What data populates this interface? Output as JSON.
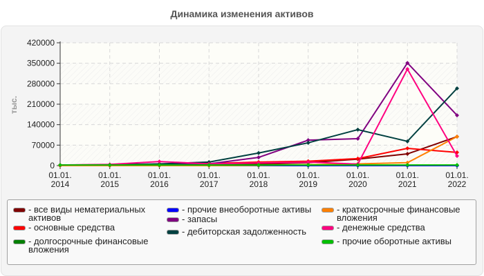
{
  "title": "Динамика изменения активов",
  "chart_data": {
    "type": "line",
    "title": "Динамика изменения активов",
    "xlabel": "",
    "ylabel": "тыс.",
    "ylim": [
      0,
      420000
    ],
    "yticks": [
      "0",
      "70000",
      "140000",
      "210000",
      "280000",
      "350000",
      "420000"
    ],
    "categories": [
      "01.01.\n2014",
      "01.01.\n2015",
      "01.01.\n2016",
      "01.01.\n2017",
      "01.01.\n2018",
      "01.01.\n2019",
      "01.01.\n2020",
      "01.01.\n2021",
      "01.01.\n2022"
    ],
    "grid": true,
    "legend_position": "bottom",
    "series": [
      {
        "name": "все виды нематериальных активов",
        "color": "#800000",
        "values": [
          0,
          0,
          1000,
          2000,
          5000,
          10000,
          22000,
          40000,
          99000
        ]
      },
      {
        "name": "основные средства",
        "color": "#ff0000",
        "values": [
          2000,
          3000,
          5000,
          7000,
          12000,
          15000,
          24000,
          59000,
          45000
        ]
      },
      {
        "name": "долгосрочные финансовые вложения",
        "color": "#008000",
        "values": [
          0,
          0,
          0,
          0,
          0,
          0,
          0,
          0,
          0
        ]
      },
      {
        "name": "прочие внеоборотные активы",
        "color": "#0000ff",
        "values": [
          0,
          0,
          0,
          0,
          0,
          0,
          0,
          0,
          0
        ]
      },
      {
        "name": "запасы",
        "color": "#800080",
        "values": [
          1000,
          2000,
          4000,
          6000,
          28000,
          87000,
          92000,
          351000,
          172000
        ]
      },
      {
        "name": "дебиторская задолженность",
        "color": "#004040",
        "values": [
          1000,
          3000,
          6000,
          12000,
          43000,
          78000,
          123000,
          83000,
          264000
        ]
      },
      {
        "name": "краткосрочные финансовые вложения",
        "color": "#ff8000",
        "values": [
          0,
          0,
          0,
          0,
          1000,
          3000,
          6000,
          10000,
          99000
        ]
      },
      {
        "name": "денежные средства",
        "color": "#ff0080",
        "values": [
          2000,
          4000,
          14000,
          6000,
          9000,
          12000,
          5000,
          330000,
          33000
        ]
      },
      {
        "name": "прочие оборотные активы",
        "color": "#00c000",
        "values": [
          2000,
          2000,
          2000,
          2000,
          2000,
          2000,
          2000,
          2000,
          2000
        ]
      }
    ]
  },
  "legend": [
    {
      "label": "- все виды нематериальных\nактивов",
      "color": "#800000"
    },
    {
      "label": "- основные средства",
      "color": "#ff0000"
    },
    {
      "label": "- долгосрочные финансовые\nвложения",
      "color": "#008000"
    },
    {
      "label": "- прочие внеоборотные активы",
      "color": "#0000ff"
    },
    {
      "label": "- запасы",
      "color": "#800080"
    },
    {
      "label": "- дебиторская задолженность",
      "color": "#004040"
    },
    {
      "label": "- краткосрочные финансовые\nвложения",
      "color": "#ff8000"
    },
    {
      "label": "- денежные средства",
      "color": "#ff0080"
    },
    {
      "label": "- прочие оборотные активы",
      "color": "#00c000"
    }
  ]
}
